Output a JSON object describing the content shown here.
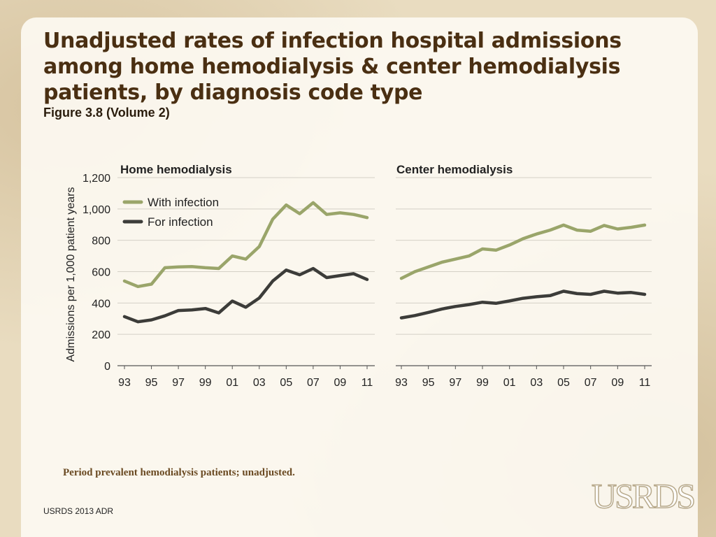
{
  "slide": {
    "title": "Unadjusted rates of infection hospital admissions among home hemodialysis & center hemodialysis patients, by diagnosis code type",
    "subtitle": "Figure 3.8 (Volume 2)",
    "footnote": "Period prevalent hemodialysis patients; unadjusted.",
    "source": "USRDS 2013 ADR",
    "logo": "USRDS"
  },
  "colors": {
    "with_infection": "#9aa56a",
    "for_infection": "#3c3c39",
    "grid": "#d4d0c6",
    "axis": "#555555"
  },
  "chart_data": [
    {
      "type": "line",
      "title": "Home hemodialysis",
      "ylabel": "Admissions per 1,000 patient years",
      "xlabel": "",
      "ylim": [
        0,
        1200
      ],
      "yticks": [
        0,
        200,
        400,
        600,
        800,
        1000,
        1200
      ],
      "ytick_labels": [
        "0",
        "200",
        "400",
        "600",
        "800",
        "1,000",
        "1,200"
      ],
      "x": [
        1993,
        1994,
        1995,
        1996,
        1997,
        1998,
        1999,
        2000,
        2001,
        2002,
        2003,
        2004,
        2005,
        2006,
        2007,
        2008,
        2009,
        2010,
        2011
      ],
      "xtick_labels": [
        "93",
        "95",
        "97",
        "99",
        "01",
        "03",
        "05",
        "07",
        "09",
        "11"
      ],
      "legend": "top-left",
      "series": [
        {
          "name": "With infection",
          "values": [
            540,
            505,
            520,
            625,
            630,
            632,
            625,
            620,
            700,
            680,
            760,
            935,
            1025,
            970,
            1040,
            965,
            975,
            965,
            945
          ]
        },
        {
          "name": "For infection",
          "values": [
            313,
            280,
            292,
            318,
            352,
            356,
            365,
            337,
            412,
            373,
            432,
            540,
            610,
            580,
            620,
            562,
            575,
            587,
            550
          ]
        }
      ]
    },
    {
      "type": "line",
      "title": "Center hemodialysis",
      "ylabel": "",
      "xlabel": "",
      "ylim": [
        0,
        1200
      ],
      "x": [
        1993,
        1994,
        1995,
        1996,
        1997,
        1998,
        1999,
        2000,
        2001,
        2002,
        2003,
        2004,
        2005,
        2006,
        2007,
        2008,
        2009,
        2010,
        2011
      ],
      "xtick_labels": [
        "93",
        "95",
        "97",
        "99",
        "01",
        "03",
        "05",
        "07",
        "09",
        "11"
      ],
      "series": [
        {
          "name": "With infection",
          "values": [
            557,
            600,
            630,
            660,
            680,
            700,
            745,
            737,
            770,
            810,
            840,
            865,
            897,
            865,
            858,
            895,
            872,
            883,
            897
          ]
        },
        {
          "name": "For infection",
          "values": [
            305,
            320,
            340,
            362,
            378,
            390,
            405,
            398,
            413,
            430,
            440,
            447,
            475,
            460,
            455,
            475,
            463,
            467,
            455
          ]
        }
      ]
    }
  ]
}
